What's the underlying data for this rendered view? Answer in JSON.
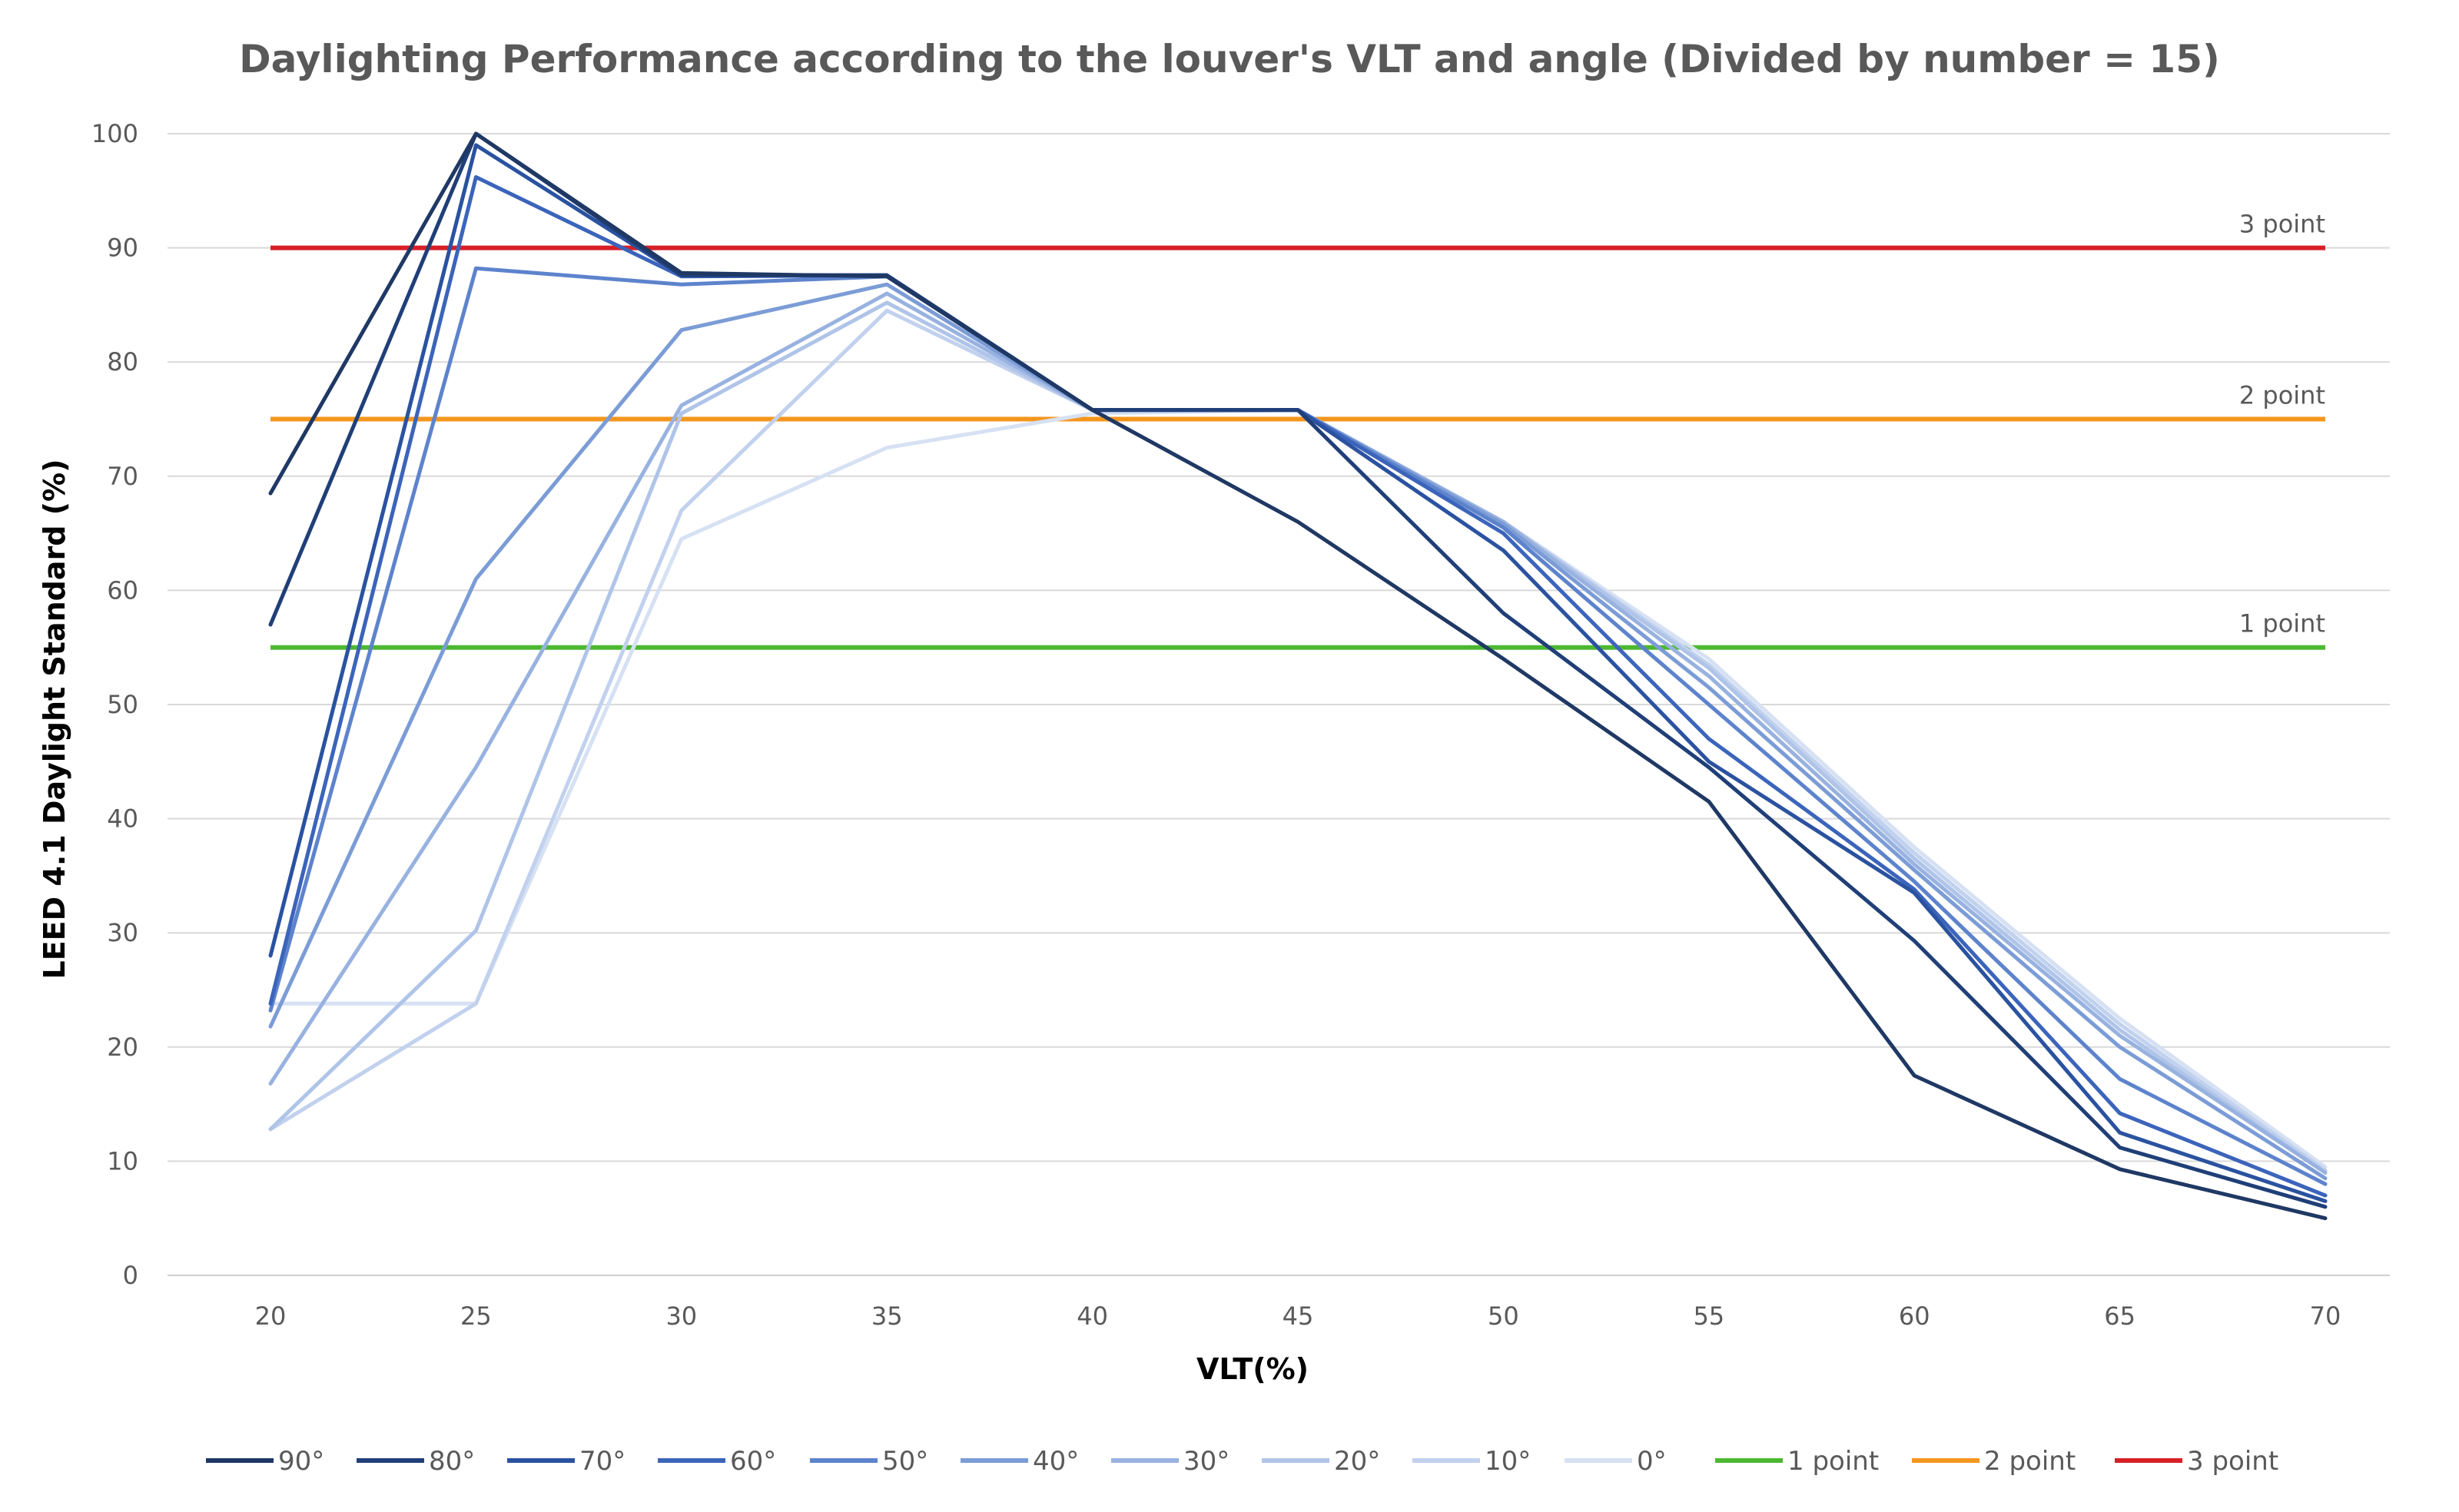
{
  "chart_data": {
    "type": "line",
    "title": "Daylighting Performance according to the louver's VLT and angle (Divided by number = 15)",
    "xlabel": "VLT(%)",
    "ylabel": "LEED 4.1 Daylight Standard (%)",
    "categories": [
      20,
      25,
      30,
      35,
      40,
      45,
      50,
      55,
      60,
      65,
      70
    ],
    "ylim": [
      0,
      100
    ],
    "yticks": [
      0,
      10,
      20,
      30,
      40,
      50,
      60,
      70,
      80,
      90,
      100
    ],
    "grid": true,
    "legend_position": "bottom",
    "series": [
      {
        "name": "90°",
        "color": "#1f3864",
        "values": [
          68.5,
          100,
          87.8,
          87.5,
          75.8,
          66,
          54,
          41.5,
          17.5,
          9.3,
          5
        ]
      },
      {
        "name": "80°",
        "color": "#203f78",
        "values": [
          57,
          100,
          87.6,
          87.6,
          75.8,
          75.8,
          58,
          44.5,
          29.3,
          11.2,
          6
        ]
      },
      {
        "name": "70°",
        "color": "#2a52a0",
        "values": [
          28,
          99,
          87.6,
          87.6,
          75.8,
          75.8,
          63.5,
          45,
          33.5,
          12.5,
          6.5
        ]
      },
      {
        "name": "60°",
        "color": "#3b64bb",
        "values": [
          23.8,
          96.2,
          87.5,
          87.6,
          75.8,
          75.8,
          65,
          47,
          33.8,
          14.2,
          7
        ]
      },
      {
        "name": "50°",
        "color": "#5d83cc",
        "values": [
          23.2,
          88.2,
          86.8,
          87.5,
          75.8,
          75.8,
          65.5,
          50,
          34.5,
          17.2,
          8
        ]
      },
      {
        "name": "40°",
        "color": "#7b9cd6",
        "values": [
          21.8,
          61,
          82.8,
          86.8,
          75.8,
          75.8,
          65.8,
          51.5,
          35.5,
          20,
          8.5
        ]
      },
      {
        "name": "30°",
        "color": "#98b2e0",
        "values": [
          16.8,
          44.5,
          76.2,
          86,
          75.8,
          75.8,
          66,
          52.5,
          36,
          21,
          9
        ]
      },
      {
        "name": "20°",
        "color": "#afc4e8",
        "values": [
          12.8,
          30.2,
          75.5,
          85.2,
          75.8,
          75.8,
          66,
          53.2,
          36.5,
          21.5,
          9
        ]
      },
      {
        "name": "10°",
        "color": "#c1d1ee",
        "values": [
          12.8,
          23.8,
          67,
          84.5,
          75.8,
          75.8,
          66,
          53.5,
          37,
          22,
          9.2
        ]
      },
      {
        "name": "0°",
        "color": "#d6e1f3",
        "values": [
          23.8,
          23.8,
          64.5,
          72.5,
          75.5,
          75.8,
          66,
          54,
          37.5,
          22.5,
          9.5
        ]
      }
    ],
    "reference_lines": [
      {
        "name": "1 point",
        "value": 55,
        "color": "#4cb830",
        "label": "1 point"
      },
      {
        "name": "2 point",
        "value": 75,
        "color": "#f4961e",
        "label": "2 point"
      },
      {
        "name": "3 point",
        "value": 90,
        "color": "#d81f26",
        "label": "3 point"
      }
    ]
  }
}
